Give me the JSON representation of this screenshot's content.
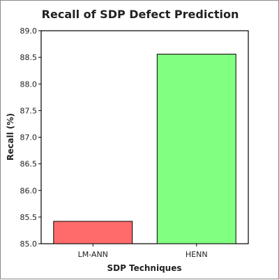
{
  "chart_data": {
    "type": "bar",
    "title": "Recall of SDP Defect Prediction",
    "xlabel": "SDP Techniques",
    "ylabel": "Recall (%)",
    "categories": [
      "LM-ANN",
      "HENN"
    ],
    "values": [
      85.42,
      88.56
    ],
    "ylim": [
      85.0,
      89.0
    ],
    "yticks": [
      "85.0",
      "85.5",
      "86.0",
      "86.5",
      "87.0",
      "87.5",
      "88.0",
      "88.5",
      "89.0"
    ],
    "colors": [
      "#ff6b6b",
      "#80ff80"
    ],
    "grid": false,
    "legend": "none"
  }
}
